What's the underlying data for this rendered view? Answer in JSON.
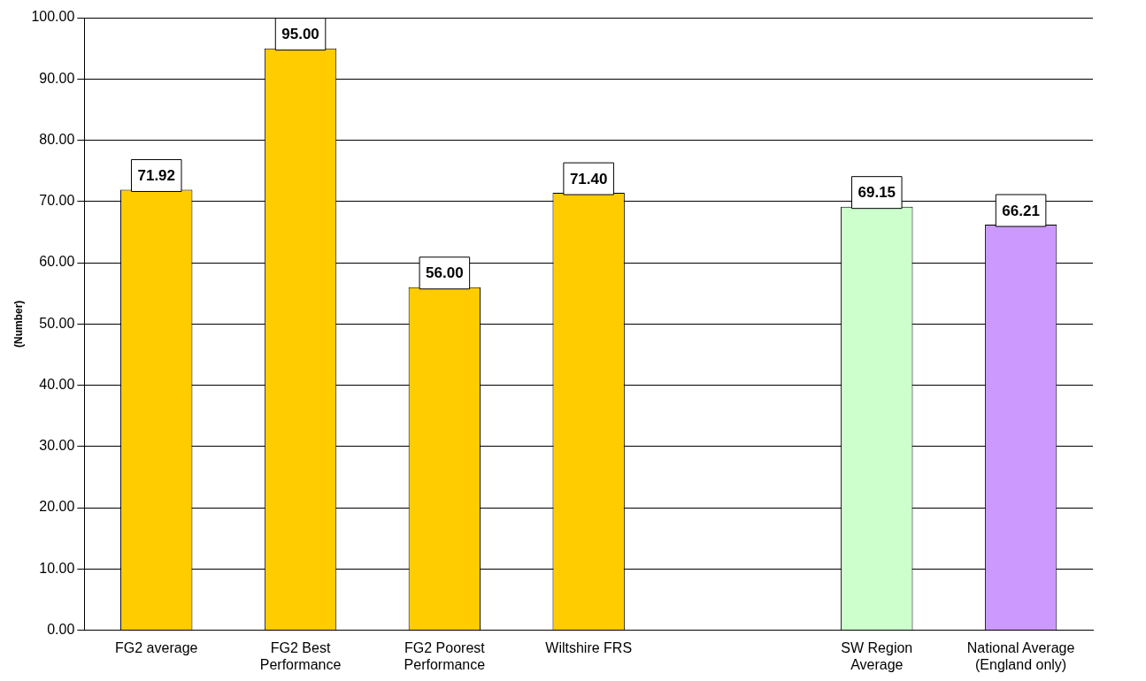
{
  "chart_data": {
    "type": "bar",
    "ylabel": "(Number)",
    "categories": [
      "FG2 average",
      "FG2 Best Performance",
      "FG2 Poorest Performance",
      "Wiltshire FRS",
      null,
      "SW Region Average",
      "National Average (England only)"
    ],
    "values": [
      71.92,
      95.0,
      56.0,
      71.4,
      null,
      69.15,
      66.21
    ],
    "colors": [
      "#ffcc00",
      "#ffcc00",
      "#ffcc00",
      "#ffcc00",
      "#ffcc00",
      "#ccffcc",
      "#cc99ff"
    ],
    "value_labels": [
      "71.92",
      "95.00",
      "56.00",
      "71.40",
      null,
      "69.15",
      "66.21"
    ],
    "ylim": [
      0,
      100
    ],
    "yticks": [
      {
        "value": 0,
        "label": "0.00"
      },
      {
        "value": 10,
        "label": "10.00"
      },
      {
        "value": 20,
        "label": "20.00"
      },
      {
        "value": 30,
        "label": "30.00"
      },
      {
        "value": 40,
        "label": "40.00"
      },
      {
        "value": 50,
        "label": "50.00"
      },
      {
        "value": 60,
        "label": "60.00"
      },
      {
        "value": 70,
        "label": "70.00"
      },
      {
        "value": 80,
        "label": "80.00"
      },
      {
        "value": 90,
        "label": "90.00"
      },
      {
        "value": 100,
        "label": "100.00"
      }
    ],
    "grid": "y",
    "legend": false
  }
}
